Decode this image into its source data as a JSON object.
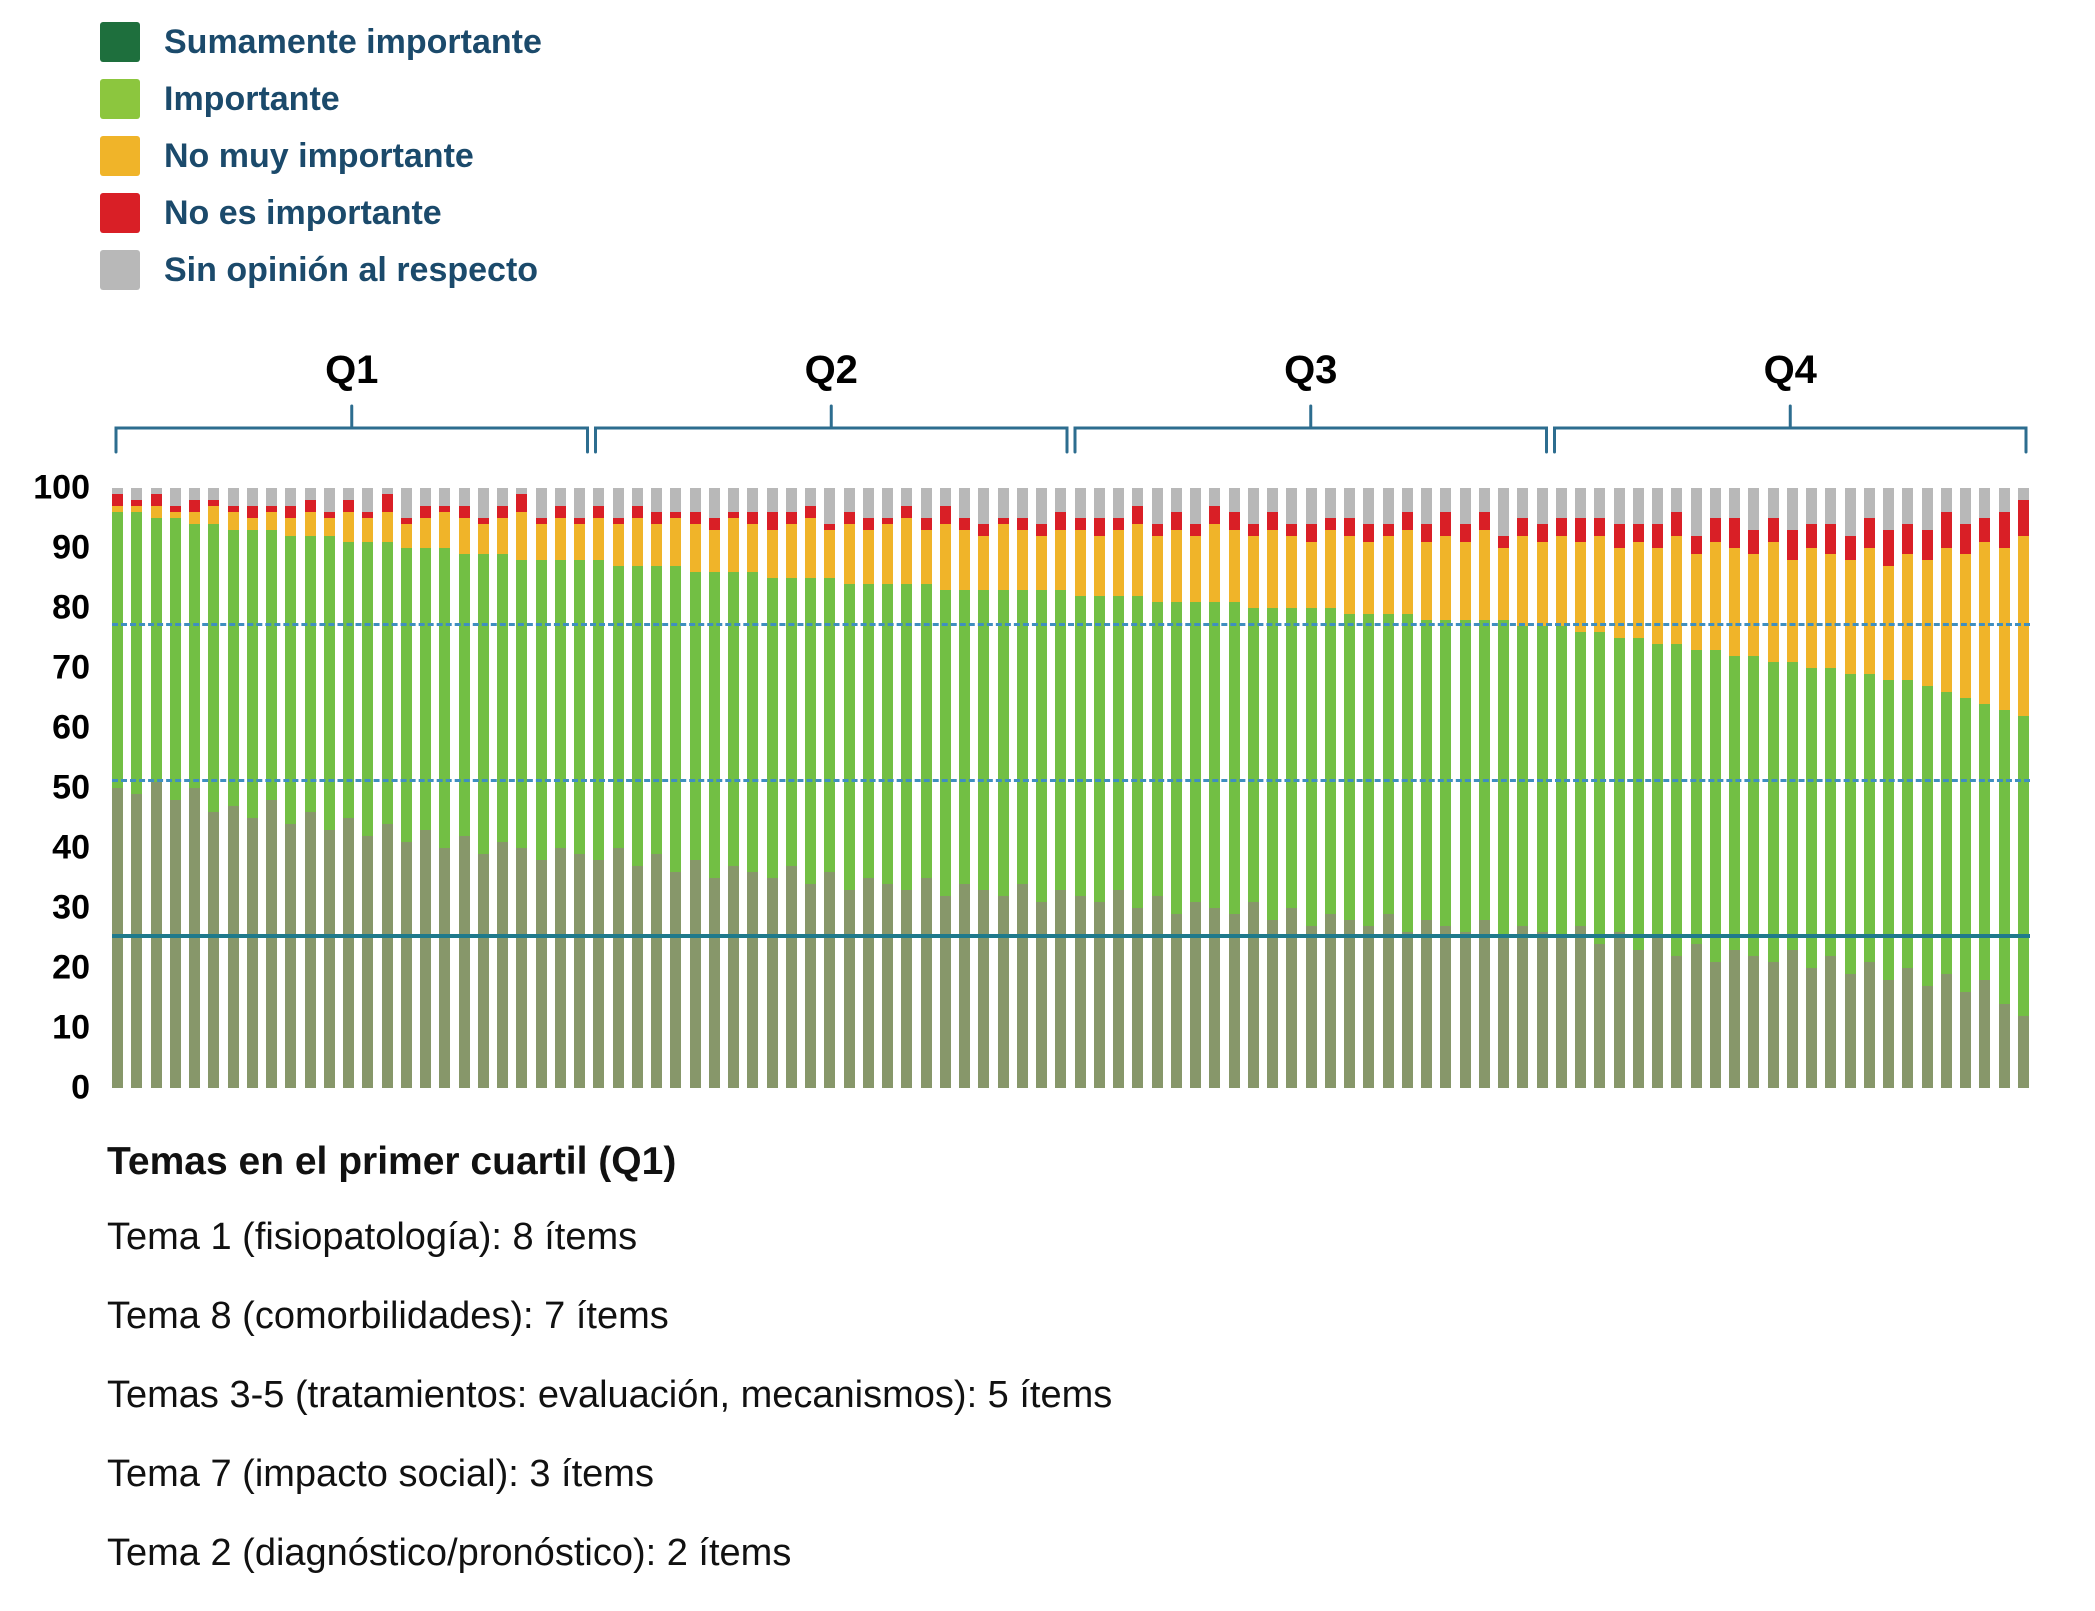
{
  "legend": {
    "text_color": "#1b4a6b",
    "items": [
      {
        "label": "Sumamente importante",
        "color": "#1e6f3d"
      },
      {
        "label": "Importante",
        "color": "#8cc63e"
      },
      {
        "label": "No muy importante",
        "color": "#f0b429"
      },
      {
        "label": "No es importante",
        "color": "#d91f26"
      },
      {
        "label": "Sin opinión al respecto",
        "color": "#b8b8b8"
      }
    ]
  },
  "chart_data": {
    "type": "bar",
    "stacked": true,
    "unit": "percent",
    "title": "",
    "xlabel": "",
    "ylabel": "",
    "ylim": [
      0,
      100
    ],
    "plot_max": 103,
    "yticks": [
      0,
      10,
      20,
      30,
      40,
      50,
      60,
      70,
      80,
      90,
      100
    ],
    "grid": false,
    "legend_position": "top-left",
    "n_items": 100,
    "series_order_bottom_to_top": [
      "Sumamente importante",
      "Importante",
      "No muy importante",
      "No es importante",
      "Sin opinión al respecto"
    ],
    "colors": {
      "sumamente": "#87976a",
      "importante": "#72bf44",
      "no_muy": "#f0b429",
      "no_es": "#d91f26",
      "sin_opinion": "#b8b8b8"
    },
    "quartiles": [
      {
        "label": "Q1",
        "start": 0,
        "end": 24
      },
      {
        "label": "Q2",
        "start": 25,
        "end": 49
      },
      {
        "label": "Q3",
        "start": 50,
        "end": 74
      },
      {
        "label": "Q4",
        "start": 75,
        "end": 99
      }
    ],
    "reference_lines": [
      {
        "value": 77,
        "style": "dashed",
        "color": "#3f8fc0"
      },
      {
        "value": 51,
        "style": "dashed",
        "color": "#3f8fc0"
      },
      {
        "value": 25,
        "style": "solid",
        "color": "#1f7a8c"
      }
    ],
    "stack_boundaries": {
      "description": "Per-bar cumulative percentages (0-100): top of 'Sumamente importante', top of green total ('Importante'), top of 'No muy importante'; 'No es importante' segment height; 'Sin opinión' fills remainder to 100.",
      "dark_green_top": [
        50,
        49,
        51,
        48,
        50,
        46,
        47,
        45,
        48,
        44,
        46,
        43,
        45,
        42,
        44,
        41,
        43,
        40,
        42,
        39,
        41,
        40,
        38,
        40,
        39,
        38,
        40,
        37,
        39,
        36,
        38,
        35,
        37,
        36,
        35,
        37,
        34,
        36,
        33,
        35,
        34,
        33,
        35,
        32,
        34,
        33,
        32,
        34,
        31,
        33,
        32,
        31,
        33,
        30,
        32,
        29,
        31,
        30,
        29,
        31,
        28,
        30,
        27,
        29,
        28,
        27,
        29,
        26,
        28,
        27,
        26,
        28,
        25,
        27,
        26,
        25,
        27,
        24,
        26,
        23,
        25,
        22,
        24,
        21,
        23,
        22,
        21,
        23,
        20,
        22,
        19,
        21,
        18,
        20,
        17,
        19,
        16,
        18,
        14,
        12
      ],
      "green_top": [
        96,
        96,
        95,
        95,
        94,
        94,
        93,
        93,
        93,
        92,
        92,
        92,
        91,
        91,
        91,
        90,
        90,
        90,
        89,
        89,
        89,
        88,
        88,
        88,
        88,
        88,
        87,
        87,
        87,
        87,
        86,
        86,
        86,
        86,
        85,
        85,
        85,
        85,
        84,
        84,
        84,
        84,
        84,
        83,
        83,
        83,
        83,
        83,
        83,
        83,
        82,
        82,
        82,
        82,
        81,
        81,
        81,
        81,
        81,
        80,
        80,
        80,
        80,
        80,
        79,
        79,
        79,
        79,
        78,
        78,
        78,
        78,
        78,
        77,
        77,
        77,
        76,
        76,
        75,
        75,
        74,
        74,
        73,
        73,
        72,
        72,
        71,
        71,
        70,
        70,
        69,
        69,
        68,
        68,
        67,
        66,
        65,
        64,
        63,
        62
      ],
      "yellow_top": [
        97,
        97,
        97,
        96,
        96,
        97,
        96,
        95,
        96,
        95,
        96,
        95,
        96,
        95,
        96,
        94,
        95,
        96,
        95,
        94,
        95,
        96,
        94,
        95,
        94,
        95,
        94,
        95,
        94,
        95,
        94,
        93,
        95,
        94,
        93,
        94,
        95,
        93,
        94,
        93,
        94,
        95,
        93,
        94,
        93,
        92,
        94,
        93,
        92,
        93,
        93,
        92,
        93,
        94,
        92,
        93,
        92,
        94,
        93,
        92,
        93,
        92,
        91,
        93,
        92,
        91,
        92,
        93,
        91,
        92,
        91,
        93,
        90,
        92,
        91,
        92,
        91,
        92,
        90,
        91,
        90,
        92,
        89,
        91,
        90,
        89,
        91,
        88,
        90,
        89,
        88,
        90,
        87,
        89,
        88,
        90,
        89,
        91,
        90,
        92
      ],
      "red_height": [
        2,
        1,
        2,
        1,
        2,
        1,
        1,
        2,
        1,
        2,
        2,
        1,
        2,
        1,
        3,
        1,
        2,
        1,
        2,
        1,
        2,
        3,
        1,
        2,
        1,
        2,
        1,
        2,
        2,
        1,
        2,
        2,
        1,
        2,
        3,
        2,
        2,
        1,
        2,
        2,
        1,
        2,
        2,
        3,
        2,
        2,
        1,
        2,
        2,
        3,
        2,
        3,
        2,
        3,
        2,
        3,
        2,
        3,
        3,
        2,
        3,
        2,
        3,
        2,
        3,
        3,
        2,
        3,
        3,
        4,
        3,
        3,
        2,
        3,
        3,
        3,
        4,
        3,
        4,
        3,
        4,
        4,
        3,
        4,
        5,
        4,
        4,
        5,
        4,
        5,
        4,
        5,
        6,
        5,
        5,
        6,
        5,
        4,
        6,
        6
      ]
    },
    "bracket_color": "#2d6d8f"
  },
  "footer": {
    "title": "Temas en el primer cuartil (Q1)",
    "lines": [
      "Tema 1 (fisiopatología): 8 ítems",
      "Tema 8 (comorbilidades): 7 ítems",
      "Temas 3-5 (tratamientos: evaluación, mecanismos): 5 ítems",
      "Tema 7 (impacto social): 3 ítems",
      "Tema 2 (diagnóstico/pronóstico): 2 ítems"
    ]
  }
}
